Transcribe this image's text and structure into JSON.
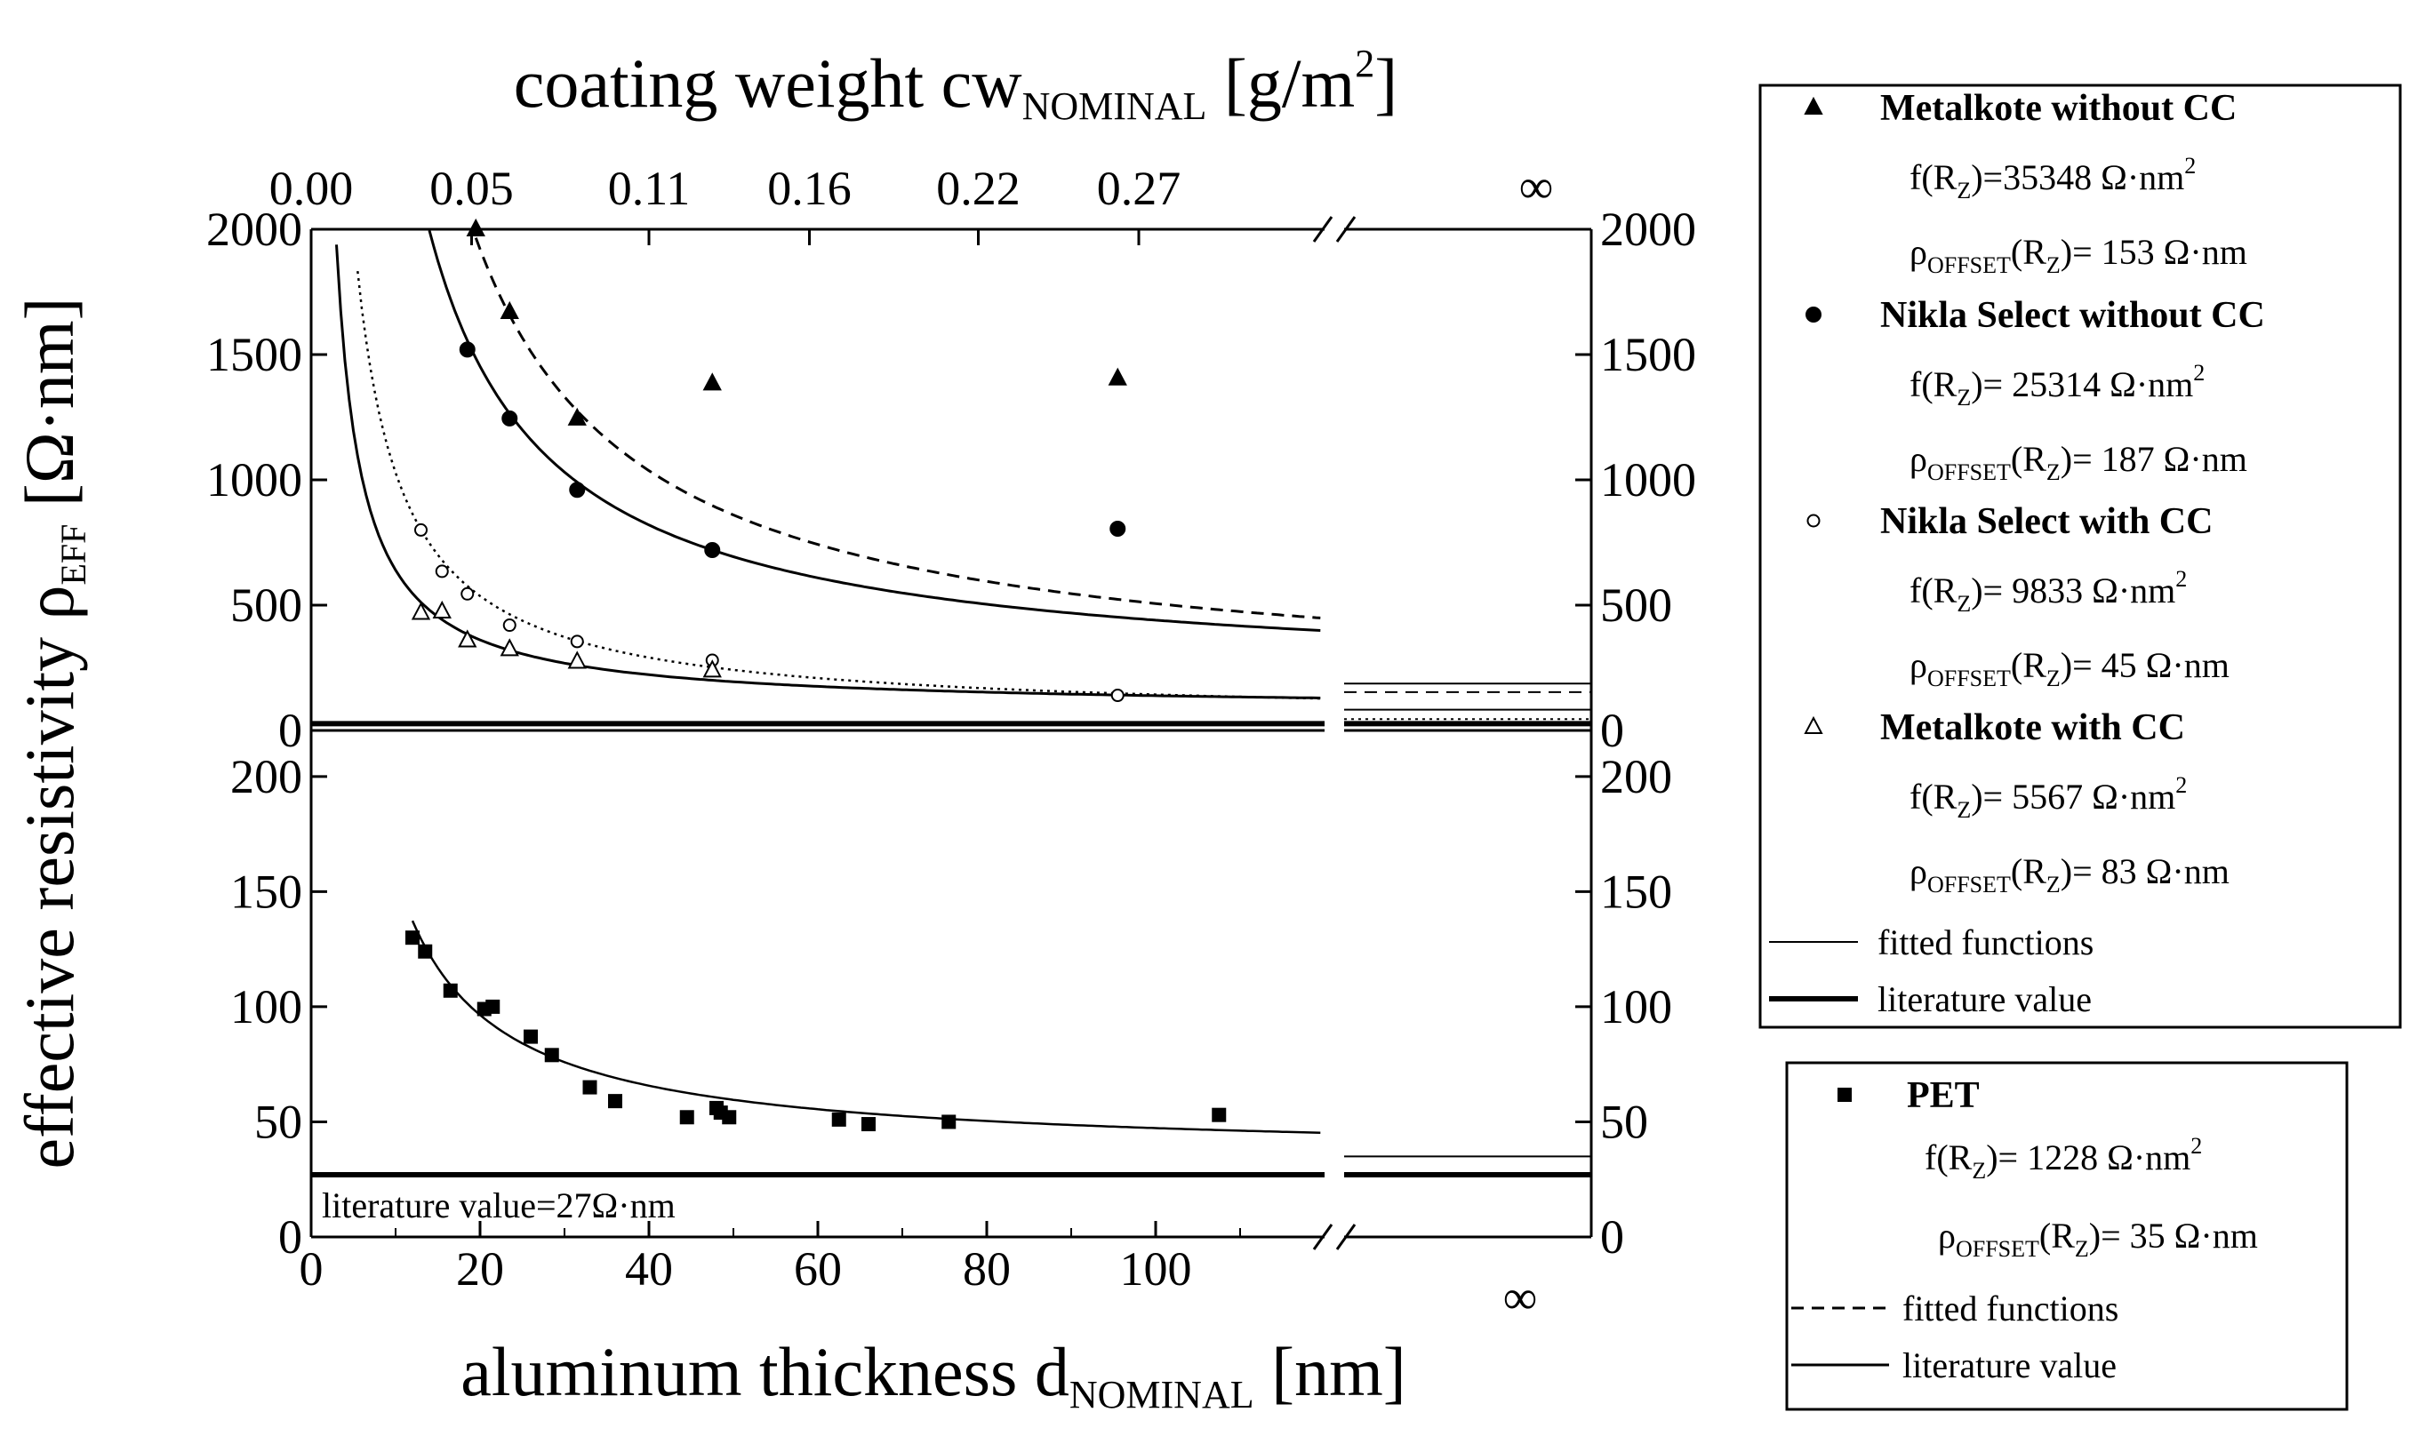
{
  "chart_data": {
    "type": "scatter",
    "top_axis": {
      "title": "coating weight cw",
      "title_subscript": "NOMINAL",
      "unit": "[g/m",
      "unit_sup": "2",
      "unit_end": "]",
      "ticks": [
        {
          "label": "0.00",
          "x": 0
        },
        {
          "label": "0.05",
          "x": 19
        },
        {
          "label": "0.11",
          "x": 40
        },
        {
          "label": "0.16",
          "x": 59
        },
        {
          "label": "0.22",
          "x": 79
        },
        {
          "label": "0.27",
          "x": 98
        }
      ],
      "infinity_label": "∞"
    },
    "bottom_axis": {
      "title": "aluminum thickness d",
      "title_subscript": "NOMINAL",
      "unit": "[nm]",
      "ticks": [
        "0",
        "20",
        "40",
        "60",
        "80",
        "100"
      ],
      "tick_values": [
        0,
        20,
        40,
        60,
        80,
        100
      ],
      "xlim": [
        0,
        120
      ],
      "infinity_label": "∞"
    },
    "ylabel": {
      "text": "effective resistivity ρ",
      "subscript": "EFF",
      "unit": "[Ω·nm]"
    },
    "upper_panel": {
      "ylim": [
        0,
        2000
      ],
      "ticks": [
        "0",
        "500",
        "1000",
        "1500",
        "2000"
      ],
      "tick_values": [
        0,
        500,
        1000,
        1500,
        2000
      ],
      "series": [
        {
          "name": "Metalkote without CC",
          "marker": "filled-triangle",
          "fit_style": "dashed",
          "f": 35348,
          "offset": 153,
          "f_label": "f(R",
          "f_sub": "Z",
          "f_value": ")=35348 Ω·nm",
          "f_sup": "2",
          "rho_label": "ρ",
          "rho_sub": "OFFSET",
          "rho_mid": "(R",
          "rho_sub2": "Z",
          "rho_value": ")= 153 Ω·nm",
          "points": [
            [
              19.5,
              2000
            ],
            [
              23.5,
              1670
            ],
            [
              31.5,
              1245
            ],
            [
              47.5,
              1385
            ],
            [
              95.5,
              1405
            ]
          ]
        },
        {
          "name": "Nikla Select without CC",
          "marker": "filled-circle",
          "fit_style": "solid",
          "f": 25314,
          "offset": 187,
          "f_label": "f(R",
          "f_sub": "Z",
          "f_value": ")= 25314 Ω·nm",
          "f_sup": "2",
          "rho_label": "ρ",
          "rho_sub": "OFFSET",
          "rho_mid": "(R",
          "rho_sub2": "Z",
          "rho_value": ")= 187 Ω·nm",
          "points": [
            [
              18.5,
              1520
            ],
            [
              23.5,
              1245
            ],
            [
              31.5,
              960
            ],
            [
              47.5,
              720
            ],
            [
              95.5,
              805
            ]
          ]
        },
        {
          "name": "Nikla Select with CC",
          "marker": "open-circle",
          "fit_style": "dotted",
          "f": 9833,
          "offset": 45,
          "f_label": "f(R",
          "f_sub": "Z",
          "f_value": ")= 9833 Ω·nm",
          "f_sup": "2",
          "rho_label": "ρ",
          "rho_sub": "OFFSET",
          "rho_mid": "(R",
          "rho_sub2": "Z",
          "rho_value": ")=  45 Ω·nm",
          "points": [
            [
              13,
              800
            ],
            [
              15.5,
              635
            ],
            [
              18.5,
              545
            ],
            [
              23.5,
              420
            ],
            [
              31.5,
              355
            ],
            [
              47.5,
              280
            ],
            [
              95.5,
              140
            ]
          ]
        },
        {
          "name": "Metalkote with CC",
          "marker": "open-triangle",
          "fit_style": "solid",
          "f": 5567,
          "offset": 83,
          "f_label": "f(R",
          "f_sub": "Z",
          "f_value": ")= 5567 Ω·nm",
          "f_sup": "2",
          "rho_label": "ρ",
          "rho_sub": "OFFSET",
          "rho_mid": "(R",
          "rho_sub2": "Z",
          "rho_value": ")= 83 Ω·nm",
          "points": [
            [
              13,
              470
            ],
            [
              15.5,
              475
            ],
            [
              18.5,
              360
            ],
            [
              23.5,
              325
            ],
            [
              31.5,
              275
            ],
            [
              47.5,
              240
            ]
          ]
        }
      ],
      "literature_value": 27
    },
    "lower_panel": {
      "ylim": [
        0,
        220
      ],
      "ticks": [
        "0",
        "50",
        "100",
        "150",
        "200"
      ],
      "tick_values": [
        0,
        50,
        100,
        150,
        200
      ],
      "series": [
        {
          "name": "PET",
          "marker": "filled-square",
          "fit_style": "solid",
          "f": 1228,
          "offset": 35,
          "f_label": "f(R",
          "f_sub": "Z",
          "f_value": ")= 1228 Ω·nm",
          "f_sup": "2",
          "rho_label": "ρ",
          "rho_sub": "OFFSET",
          "rho_mid": "(R",
          "rho_sub2": "Z",
          "rho_value": ")= 35 Ω·nm",
          "points": [
            [
              12,
              130
            ],
            [
              13.5,
              124
            ],
            [
              16.5,
              107
            ],
            [
              20.5,
              99
            ],
            [
              21.5,
              100
            ],
            [
              26,
              87
            ],
            [
              28.5,
              79
            ],
            [
              33,
              65
            ],
            [
              36,
              59
            ],
            [
              44.5,
              52
            ],
            [
              48,
              56
            ],
            [
              48.5,
              54
            ],
            [
              49.5,
              52
            ],
            [
              62.5,
              51
            ],
            [
              66,
              49
            ],
            [
              75.5,
              50
            ],
            [
              107.5,
              53
            ]
          ]
        }
      ],
      "literature_value": 27,
      "annotation": "literature value=27Ω·nm"
    },
    "legend_upper": {
      "fitted_label": "fitted functions",
      "literature_label": "literature value"
    },
    "legend_lower": {
      "fitted_label": "fitted functions",
      "literature_label": "literature value"
    }
  }
}
